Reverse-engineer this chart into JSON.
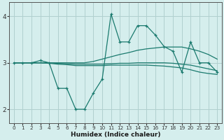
{
  "xlabel": "Humidex (Indice chaleur)",
  "xlim": [
    -0.5,
    23.5
  ],
  "ylim": [
    1.7,
    4.3
  ],
  "yticks": [
    2,
    3,
    4
  ],
  "xticks": [
    0,
    1,
    2,
    3,
    4,
    5,
    6,
    7,
    8,
    9,
    10,
    11,
    12,
    13,
    14,
    15,
    16,
    17,
    18,
    19,
    20,
    21,
    22,
    23
  ],
  "bg_color": "#d5eeed",
  "grid_color": "#b0d0cf",
  "line_color": "#1a7a6e",
  "line1_x": [
    0,
    1,
    2,
    3,
    4,
    5,
    6,
    7,
    8,
    9,
    10,
    11,
    12,
    13,
    14,
    15,
    16,
    17,
    18,
    19,
    20,
    21,
    22,
    23
  ],
  "line1_y": [
    3.0,
    3.0,
    3.0,
    3.05,
    3.0,
    2.45,
    2.45,
    2.0,
    2.0,
    2.35,
    2.65,
    4.05,
    3.45,
    3.45,
    3.8,
    3.8,
    3.6,
    3.35,
    3.25,
    2.8,
    3.45,
    3.0,
    3.0,
    2.8
  ],
  "line2_x": [
    0,
    1,
    2,
    3,
    4,
    5,
    6,
    7,
    8,
    9,
    10,
    11,
    12,
    13,
    14,
    15,
    16,
    17,
    18,
    19,
    20,
    21,
    22,
    23
  ],
  "line2_y": [
    3.0,
    3.0,
    3.0,
    3.0,
    3.0,
    3.0,
    3.0,
    3.0,
    3.0,
    3.03,
    3.08,
    3.13,
    3.18,
    3.22,
    3.27,
    3.3,
    3.32,
    3.34,
    3.34,
    3.34,
    3.3,
    3.25,
    3.18,
    3.08
  ],
  "line3_x": [
    0,
    1,
    2,
    3,
    4,
    5,
    6,
    7,
    8,
    9,
    10,
    11,
    12,
    13,
    14,
    15,
    16,
    17,
    18,
    19,
    20,
    21,
    22,
    23
  ],
  "line3_y": [
    3.0,
    3.0,
    3.0,
    3.0,
    3.0,
    2.99,
    2.98,
    2.97,
    2.97,
    2.97,
    2.97,
    2.98,
    2.99,
    2.99,
    3.0,
    3.0,
    3.0,
    3.0,
    2.99,
    2.97,
    2.95,
    2.91,
    2.87,
    2.83
  ],
  "line4_x": [
    0,
    1,
    2,
    3,
    4,
    5,
    6,
    7,
    8,
    9,
    10,
    11,
    12,
    13,
    14,
    15,
    16,
    17,
    18,
    19,
    20,
    21,
    22,
    23
  ],
  "line4_y": [
    3.0,
    3.0,
    3.0,
    3.0,
    2.99,
    2.97,
    2.96,
    2.94,
    2.94,
    2.94,
    2.94,
    2.95,
    2.95,
    2.95,
    2.95,
    2.95,
    2.94,
    2.93,
    2.91,
    2.89,
    2.85,
    2.8,
    2.77,
    2.75
  ]
}
